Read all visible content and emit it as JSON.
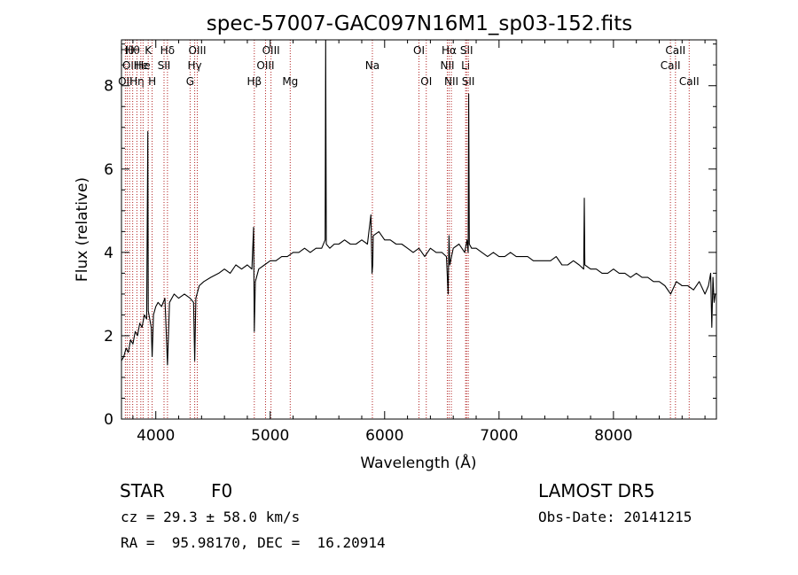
{
  "chart_data": {
    "type": "line",
    "title": "spec-57007-GAC097N16M1_sp03-152.fits",
    "xlabel": "Wavelength (Å)",
    "ylabel": "Flux (relative)",
    "xlim": [
      3700,
      8900
    ],
    "ylim": [
      0,
      9.1
    ],
    "x_ticks": [
      4000,
      5000,
      6000,
      7000,
      8000
    ],
    "y_ticks": [
      0,
      2,
      4,
      6,
      8
    ],
    "grid": false,
    "series": [
      {
        "x": [
          3700,
          3720,
          3740,
          3760,
          3780,
          3800,
          3820,
          3840,
          3860,
          3880,
          3900,
          3920,
          3930,
          3934,
          3940,
          3960,
          3968,
          3980,
          4000,
          4020,
          4050,
          4080,
          4102,
          4120,
          4160,
          4200,
          4250,
          4300,
          4330,
          4340,
          4350,
          4380,
          4420,
          4480,
          4550,
          4600,
          4650,
          4700,
          4750,
          4800,
          4840,
          4855,
          4861,
          4870,
          4900,
          4950,
          5000,
          5050,
          5100,
          5150,
          5200,
          5250,
          5300,
          5350,
          5400,
          5450,
          5480,
          5485,
          5490,
          5520,
          5560,
          5600,
          5650,
          5700,
          5750,
          5800,
          5850,
          5880,
          5890,
          5896,
          5900,
          5950,
          6000,
          6050,
          6100,
          6150,
          6200,
          6250,
          6300,
          6350,
          6400,
          6450,
          6500,
          6540,
          6555,
          6563,
          6570,
          6600,
          6650,
          6700,
          6720,
          6730,
          6735,
          6740,
          6760,
          6800,
          6850,
          6900,
          6950,
          7000,
          7050,
          7100,
          7150,
          7200,
          7250,
          7300,
          7350,
          7400,
          7450,
          7500,
          7550,
          7600,
          7650,
          7700,
          7740,
          7745,
          7750,
          7800,
          7850,
          7900,
          7950,
          8000,
          8050,
          8100,
          8150,
          8200,
          8250,
          8300,
          8350,
          8400,
          8450,
          8500,
          8550,
          8600,
          8650,
          8700,
          8750,
          8800,
          8830,
          8850,
          8860,
          8870,
          8880,
          8890
        ],
        "y": [
          1.4,
          1.5,
          1.7,
          1.6,
          1.9,
          1.8,
          2.1,
          2.0,
          2.3,
          2.2,
          2.5,
          2.4,
          6.9,
          2.6,
          2.5,
          2.2,
          1.5,
          2.5,
          2.7,
          2.8,
          2.7,
          2.9,
          1.3,
          2.8,
          3.0,
          2.9,
          3.0,
          2.9,
          2.8,
          1.4,
          2.9,
          3.2,
          3.3,
          3.4,
          3.5,
          3.6,
          3.5,
          3.7,
          3.6,
          3.7,
          3.6,
          4.6,
          2.1,
          3.3,
          3.6,
          3.7,
          3.8,
          3.8,
          3.9,
          3.9,
          4.0,
          4.0,
          4.1,
          4.0,
          4.1,
          4.1,
          4.3,
          9.2,
          4.2,
          4.1,
          4.2,
          4.2,
          4.3,
          4.2,
          4.2,
          4.3,
          4.2,
          4.9,
          3.5,
          3.7,
          4.4,
          4.5,
          4.3,
          4.3,
          4.2,
          4.2,
          4.1,
          4.0,
          4.1,
          3.9,
          4.1,
          4.0,
          4.0,
          3.9,
          3.0,
          4.4,
          3.7,
          4.1,
          4.2,
          4.0,
          4.3,
          4.0,
          7.8,
          4.2,
          4.1,
          4.1,
          4.0,
          3.9,
          4.0,
          3.9,
          3.9,
          4.0,
          3.9,
          3.9,
          3.9,
          3.8,
          3.8,
          3.8,
          3.8,
          3.9,
          3.7,
          3.7,
          3.8,
          3.7,
          3.6,
          5.3,
          3.7,
          3.6,
          3.6,
          3.5,
          3.5,
          3.6,
          3.5,
          3.5,
          3.4,
          3.5,
          3.4,
          3.4,
          3.3,
          3.3,
          3.2,
          3.0,
          3.3,
          3.2,
          3.2,
          3.1,
          3.3,
          3.0,
          3.2,
          3.5,
          2.2,
          3.4,
          2.8,
          3.0
        ]
      }
    ],
    "line_markers": [
      {
        "wl": 3734,
        "row": 3,
        "label": "OII"
      },
      {
        "wl": 3750,
        "row": 1,
        "label": "Hθ"
      },
      {
        "wl": 3771,
        "row": 2,
        "label": "OII"
      },
      {
        "wl": 3798,
        "row": 1,
        "label": "Hθ"
      },
      {
        "wl": 3835,
        "row": 3,
        "label": "Hη"
      },
      {
        "wl": 3869,
        "row": 2,
        "label": "He"
      },
      {
        "wl": 3889,
        "row": 2,
        "label": "He"
      },
      {
        "wl": 3934,
        "row": 1,
        "label": "K"
      },
      {
        "wl": 3968,
        "row": 3,
        "label": "H"
      },
      {
        "wl": 4072,
        "row": 2,
        "label": "SII"
      },
      {
        "wl": 4102,
        "row": 1,
        "label": "Hδ"
      },
      {
        "wl": 4300,
        "row": 3,
        "label": "G"
      },
      {
        "wl": 4340,
        "row": 2,
        "label": "Hγ"
      },
      {
        "wl": 4363,
        "row": 1,
        "label": "OIII"
      },
      {
        "wl": 4861,
        "row": 3,
        "label": "Hβ"
      },
      {
        "wl": 4959,
        "row": 2,
        "label": "OIII"
      },
      {
        "wl": 5007,
        "row": 1,
        "label": "OIII"
      },
      {
        "wl": 5175,
        "row": 3,
        "label": "Mg"
      },
      {
        "wl": 5893,
        "row": 2,
        "label": "Na"
      },
      {
        "wl": 6300,
        "row": 1,
        "label": "OI"
      },
      {
        "wl": 6364,
        "row": 3,
        "label": "OI"
      },
      {
        "wl": 6548,
        "row": 2,
        "label": "NII"
      },
      {
        "wl": 6563,
        "row": 1,
        "label": "Hα"
      },
      {
        "wl": 6583,
        "row": 3,
        "label": "NII"
      },
      {
        "wl": 6708,
        "row": 2,
        "label": "Li"
      },
      {
        "wl": 6716,
        "row": 1,
        "label": "SII"
      },
      {
        "wl": 6731,
        "row": 3,
        "label": "SII"
      },
      {
        "wl": 8498,
        "row": 2,
        "label": "CaII"
      },
      {
        "wl": 8542,
        "row": 1,
        "label": "CaII"
      },
      {
        "wl": 8662,
        "row": 3,
        "label": "CaII"
      }
    ]
  },
  "info": {
    "class_text": "STAR",
    "subclass_text": "F0",
    "cz_text": "cz = 29.3 ± 58.0 km/s",
    "radec_text": "RA =  95.98170, DEC =  16.20914",
    "survey_text": "LAMOST DR5",
    "obsdate_text": "Obs-Date: 20141215"
  }
}
